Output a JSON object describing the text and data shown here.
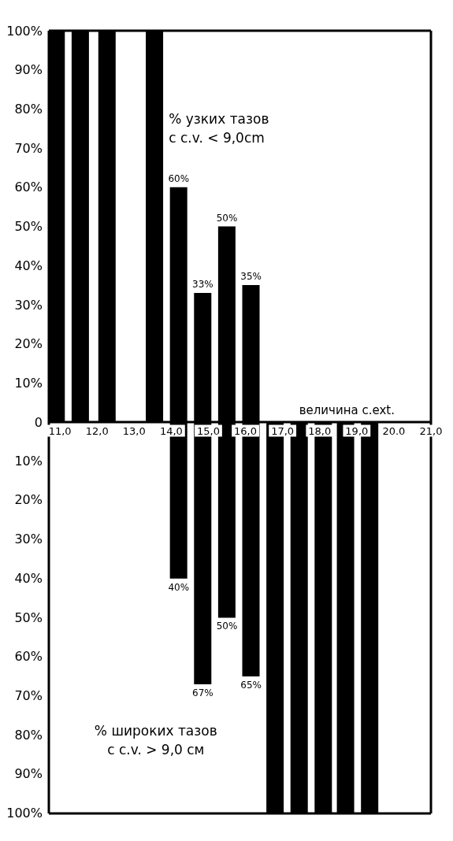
{
  "chart_data": {
    "type": "bar",
    "xlabel": "величина c.ext.",
    "x": [
      10.9,
      11.55,
      12.27,
      13.55,
      14.2,
      14.85,
      15.5,
      16.15,
      16.8,
      17.45,
      18.1,
      18.7,
      19.35
    ],
    "series": [
      {
        "name": "% узких тазов с c.v. < 9,0cm",
        "color": "#000000",
        "values": [
          100,
          100,
          100,
          100,
          60,
          33,
          50,
          35,
          0,
          0,
          0,
          0,
          0
        ],
        "value_labels": [
          null,
          null,
          null,
          null,
          "60%",
          "33%",
          "50%",
          "35%",
          null,
          null,
          null,
          null,
          null
        ]
      },
      {
        "name": "% широких тазов с c.v. > 9,0 см",
        "color": "#000000",
        "axis": "y2",
        "values": [
          0,
          0,
          0,
          0,
          40,
          67,
          50,
          65,
          100,
          100,
          100,
          100,
          100
        ],
        "value_labels": [
          null,
          null,
          null,
          null,
          "40%",
          "67%",
          "50%",
          "65%",
          null,
          null,
          null,
          null,
          null
        ]
      }
    ],
    "xlim": [
      10.7,
      21.0
    ],
    "xticks": [
      {
        "value": 11,
        "label": "11,0"
      },
      {
        "value": 12,
        "label": "12,0"
      },
      {
        "value": 13,
        "label": "13,0"
      },
      {
        "value": 14,
        "label": "14,0"
      },
      {
        "value": 15,
        "label": "15,0"
      },
      {
        "value": 16,
        "label": "16,0"
      },
      {
        "value": 17,
        "label": "17,0"
      },
      {
        "value": 18,
        "label": "18,0"
      },
      {
        "value": 19,
        "label": "19,0"
      },
      {
        "value": 20,
        "label": "20.0"
      },
      {
        "value": 21,
        "label": "21,0"
      }
    ],
    "ylim": [
      -100,
      100
    ],
    "yticks": [
      0,
      {
        "value": 10,
        "label": "10%"
      },
      {
        "value": 20,
        "label": "20%"
      },
      {
        "value": 30,
        "label": "30%"
      },
      {
        "value": 40,
        "label": "40%"
      },
      {
        "value": 50,
        "label": "50%"
      },
      {
        "value": 60,
        "label": "60%"
      },
      {
        "value": 70,
        "label": "70%"
      },
      {
        "value": 80,
        "label": "80%"
      },
      {
        "value": 90,
        "label": "90%"
      },
      {
        "value": 100,
        "label": "100%"
      }
    ],
    "y2lim": [
      100,
      -100
    ],
    "y2ticks": [
      {
        "value": 10,
        "label": "10%"
      },
      {
        "value": 20,
        "label": "20%"
      },
      {
        "value": 30,
        "label": "30%"
      },
      {
        "value": 40,
        "label": "40%"
      },
      {
        "value": 50,
        "label": "50%"
      },
      {
        "value": 60,
        "label": "60%"
      },
      {
        "value": 70,
        "label": "70%"
      },
      {
        "value": 80,
        "label": "80%"
      },
      {
        "value": 90,
        "label": "90%"
      },
      {
        "value": 100,
        "label": "100%"
      }
    ],
    "grid": false,
    "legend": false
  }
}
